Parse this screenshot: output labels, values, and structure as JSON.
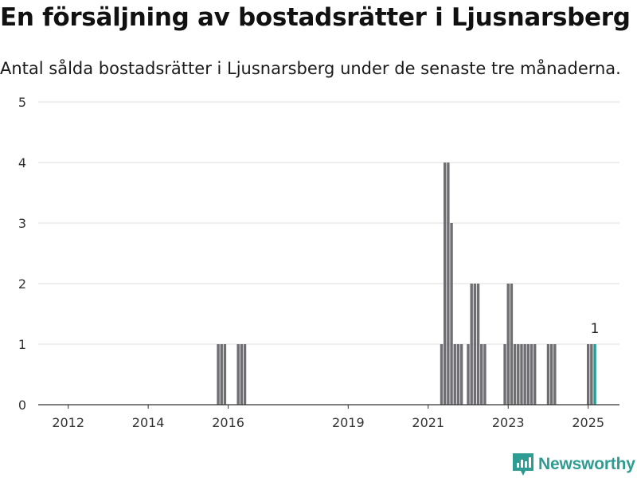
{
  "title": "En försäljning av bostadsrätter i Ljusnarsberg",
  "subtitle": "Antal sålda bostadsrätter i Ljusnarsberg under de senaste tre månaderna.",
  "brand": {
    "name": "Newsworthy",
    "icon": "newsworthy-logo-icon",
    "color": "#2e9c93"
  },
  "colors": {
    "bar": "#6e6e73",
    "highlight": "#1f9e94",
    "grid": "#dddddd",
    "axis": "#333333"
  },
  "chart_data": {
    "type": "bar",
    "x_unit": "month",
    "y_range": [
      0,
      5
    ],
    "y_ticks": [
      0,
      1,
      2,
      3,
      4,
      5
    ],
    "x_tick_labels": [
      "2012",
      "2014",
      "2016",
      "2019",
      "2021",
      "2023",
      "2025"
    ],
    "grid": true,
    "values": [
      {
        "month": "2015-10",
        "value": 1
      },
      {
        "month": "2015-11",
        "value": 1
      },
      {
        "month": "2015-12",
        "value": 1
      },
      {
        "month": "2016-04",
        "value": 1
      },
      {
        "month": "2016-05",
        "value": 1
      },
      {
        "month": "2016-06",
        "value": 1
      },
      {
        "month": "2021-05",
        "value": 1
      },
      {
        "month": "2021-06",
        "value": 4
      },
      {
        "month": "2021-07",
        "value": 4
      },
      {
        "month": "2021-08",
        "value": 3
      },
      {
        "month": "2021-09",
        "value": 1
      },
      {
        "month": "2021-10",
        "value": 1
      },
      {
        "month": "2021-11",
        "value": 1
      },
      {
        "month": "2022-01",
        "value": 1
      },
      {
        "month": "2022-02",
        "value": 2
      },
      {
        "month": "2022-03",
        "value": 2
      },
      {
        "month": "2022-04",
        "value": 2
      },
      {
        "month": "2022-05",
        "value": 1
      },
      {
        "month": "2022-06",
        "value": 1
      },
      {
        "month": "2022-12",
        "value": 1
      },
      {
        "month": "2023-01",
        "value": 2
      },
      {
        "month": "2023-02",
        "value": 2
      },
      {
        "month": "2023-03",
        "value": 1
      },
      {
        "month": "2023-04",
        "value": 1
      },
      {
        "month": "2023-05",
        "value": 1
      },
      {
        "month": "2023-06",
        "value": 1
      },
      {
        "month": "2023-07",
        "value": 1
      },
      {
        "month": "2023-08",
        "value": 1
      },
      {
        "month": "2023-09",
        "value": 1
      },
      {
        "month": "2024-01",
        "value": 1
      },
      {
        "month": "2024-02",
        "value": 1
      },
      {
        "month": "2024-03",
        "value": 1
      },
      {
        "month": "2025-01",
        "value": 1
      },
      {
        "month": "2025-02",
        "value": 1
      },
      {
        "month": "2025-03",
        "value": 1,
        "highlight": true,
        "label": "1"
      }
    ]
  }
}
